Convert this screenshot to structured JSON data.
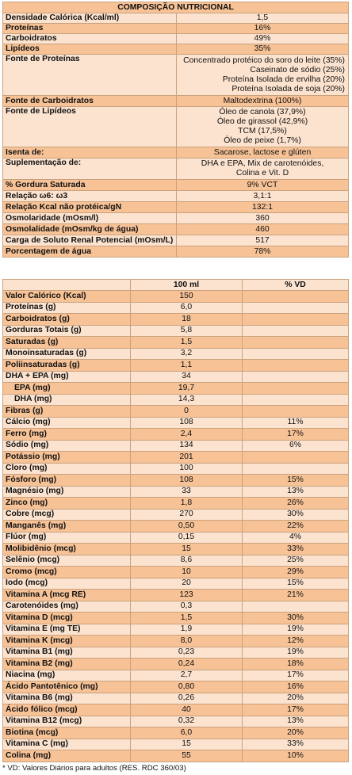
{
  "table1": {
    "title": "COMPOSIÇÃO NUTRICIONAL",
    "rows": [
      {
        "label": "Densidade Calórica (Kcal/ml)",
        "value": "1,5"
      },
      {
        "label": "Proteínas",
        "value": "16%"
      },
      {
        "label": "Carboidratos",
        "value": "49%"
      },
      {
        "label": "Lipídeos",
        "value": "35%"
      }
    ],
    "protein_source": {
      "label": "Fonte de Proteínas",
      "lines": [
        "Concentrado protéico do soro do leite (35%)",
        "Caseinato de sódio (25%)",
        "Proteína Isolada de ervilha (20%)",
        "Proteína Isolada de soja (20%)"
      ]
    },
    "carb_source": {
      "label": "Fonte de Carboidratos",
      "value": "Maltodextrina (100%)"
    },
    "lipid_source": {
      "label": "Fonte de Lipídeos",
      "lines": [
        "Óleo de canola (37,9%)",
        "Óleo de girassol (42,9%)",
        "TCM (17,5%)",
        "Óleo de peixe (1,7%)"
      ]
    },
    "free_of": {
      "label": "Isenta de:",
      "value": "Sacarose, lactose e glúten"
    },
    "supplement": {
      "label": "Suplementação de:",
      "lines": [
        "DHA e EPA, Mix de carotenóides,",
        "Colina e Vit. D"
      ]
    },
    "rows2": [
      {
        "label": "% Gordura Saturada",
        "value": "9% VCT"
      },
      {
        "label": "Relação ω6: ω3",
        "value": "3,1:1"
      },
      {
        "label": "Relação Kcal não protéica/gN",
        "value": "132:1"
      },
      {
        "label": "Osmolaridade (mOsm/l)",
        "value": "360"
      },
      {
        "label": "Osmolalidade (mOsm/kg de água)",
        "value": "460"
      },
      {
        "label": "Carga de Soluto Renal Potencial (mOsm/L)",
        "value": "517"
      },
      {
        "label": "Porcentagem de água",
        "value": "78%"
      }
    ]
  },
  "table2": {
    "headers": [
      "",
      "100 ml",
      "% VD"
    ],
    "rows": [
      {
        "label": "Valor Calórico (Kcal)",
        "value": "150",
        "vd": ""
      },
      {
        "label": "Proteínas (g)",
        "value": "6,0",
        "vd": ""
      },
      {
        "label": "Carboidratos (g)",
        "value": "18",
        "vd": ""
      },
      {
        "label": "Gorduras Totais (g)",
        "value": "5,8",
        "vd": ""
      },
      {
        "label": "Saturadas (g)",
        "value": "1,5",
        "vd": ""
      },
      {
        "label": "Monoinsaturadas (g)",
        "value": "3,2",
        "vd": ""
      },
      {
        "label": "Poliinsaturadas (g)",
        "value": "1,1",
        "vd": ""
      },
      {
        "label": "DHA + EPA (mg)",
        "value": "34",
        "vd": ""
      },
      {
        "label": "EPA (mg)",
        "value": "19,7",
        "vd": ""
      },
      {
        "label": "DHA (mg)",
        "value": "14,3",
        "vd": ""
      },
      {
        "label": "Fibras (g)",
        "value": "0",
        "vd": ""
      },
      {
        "label": "Cálcio (mg)",
        "value": "108",
        "vd": "11%"
      },
      {
        "label": "Ferro (mg)",
        "value": "2,4",
        "vd": "17%"
      },
      {
        "label": "Sódio (mg)",
        "value": "134",
        "vd": "6%"
      },
      {
        "label": "Potássio (mg)",
        "value": "201",
        "vd": ""
      },
      {
        "label": "Cloro (mg)",
        "value": "100",
        "vd": ""
      },
      {
        "label": "Fósforo (mg)",
        "value": "108",
        "vd": "15%"
      },
      {
        "label": "Magnésio (mg)",
        "value": "33",
        "vd": "13%"
      },
      {
        "label": "Zinco (mg)",
        "value": "1,8",
        "vd": "26%"
      },
      {
        "label": "Cobre (mcg)",
        "value": "270",
        "vd": "30%"
      },
      {
        "label": "Manganês (mg)",
        "value": "0,50",
        "vd": "22%"
      },
      {
        "label": "Flúor (mg)",
        "value": "0,15",
        "vd": "4%"
      },
      {
        "label": "Molibidênio (mcg)",
        "value": "15",
        "vd": "33%"
      },
      {
        "label": "Selênio (mcg)",
        "value": "8,6",
        "vd": "25%"
      },
      {
        "label": "Cromo (mcg)",
        "value": "10",
        "vd": "29%"
      },
      {
        "label": "Iodo (mcg)",
        "value": "20",
        "vd": "15%"
      },
      {
        "label": "Vitamina A (mcg RE)",
        "value": "123",
        "vd": "21%"
      },
      {
        "label": "Carotenóides (mg)",
        "value": "0,3",
        "vd": ""
      },
      {
        "label": "Vitamina D (mcg)",
        "value": "1,5",
        "vd": "30%"
      },
      {
        "label": "Vitamina E (mg TE)",
        "value": "1,9",
        "vd": "19%"
      },
      {
        "label": "Vitamina K (mcg)",
        "value": "8,0",
        "vd": "12%"
      },
      {
        "label": "Vitamina B1 (mg)",
        "value": "0,23",
        "vd": "19%"
      },
      {
        "label": "Vitamina B2 (mg)",
        "value": "0,24",
        "vd": "18%"
      },
      {
        "label": "Niacina (mg)",
        "value": "2,7",
        "vd": "17%"
      },
      {
        "label": "Ácido Pantotênico (mg)",
        "value": "0,80",
        "vd": "16%"
      },
      {
        "label": "Vitamina B6 (mg)",
        "value": "0,26",
        "vd": "20%"
      },
      {
        "label": "Ácido fólico (mcg)",
        "value": "40",
        "vd": "17%"
      },
      {
        "label": "Vitamina B12 (mcg)",
        "value": "0,32",
        "vd": "13%"
      },
      {
        "label": "Biotina (mcg)",
        "value": "6,0",
        "vd": "20%"
      },
      {
        "label": "Vitamina C (mg)",
        "value": "15",
        "vd": "33%"
      },
      {
        "label": "Colina (mg)",
        "value": "55",
        "vd": "10%"
      }
    ]
  },
  "footnote": "* VD: Valores Diários para adultos (RES. RDC 360/03)"
}
